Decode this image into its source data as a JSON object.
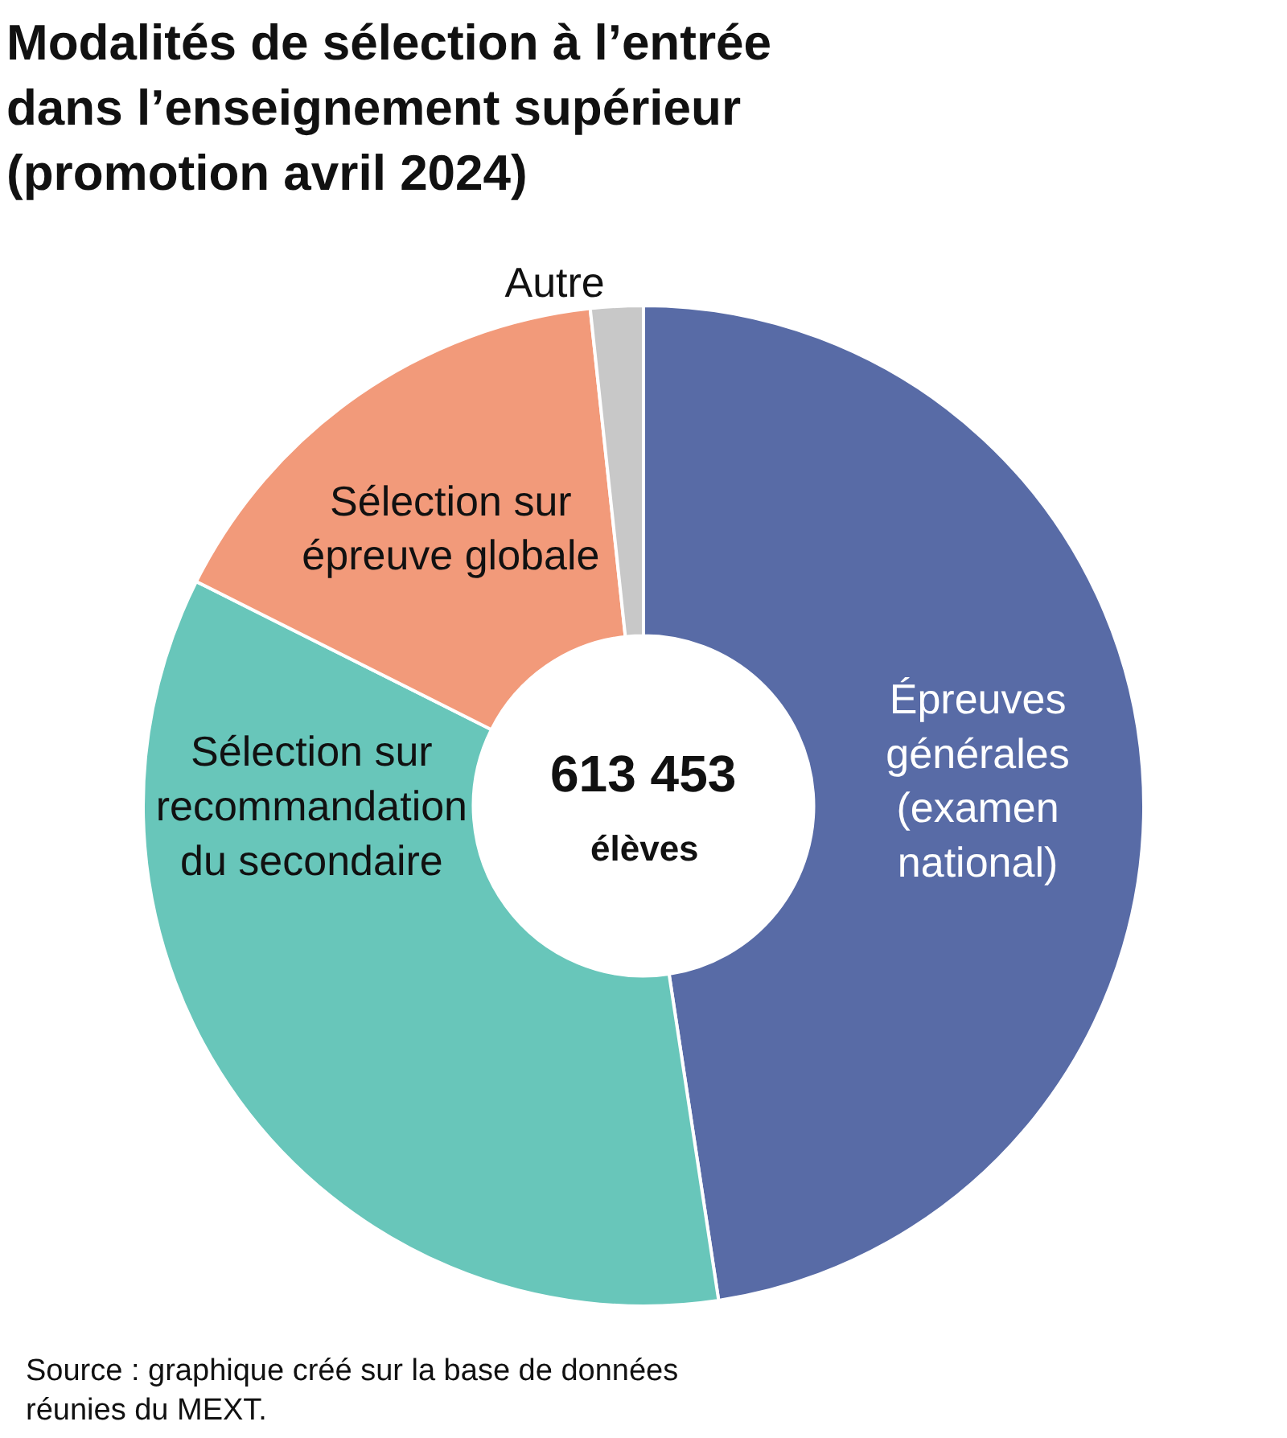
{
  "chart_data": {
    "type": "donut",
    "title": "Modalités de sélection à l’entrée dans l’enseignement supérieur (promotion avril 2024)",
    "categories": [
      "Épreuves générales (examen national)",
      "Sélection sur recommandation du secondaire",
      "Sélection sur épreuve globale",
      "Autre"
    ],
    "values": [
      47.6,
      34.8,
      15.9,
      1.7
    ],
    "colors": [
      "#586ba6",
      "#68c6ba",
      "#f29a7a",
      "#c8c8c8"
    ],
    "annotations": [
      "613 453",
      "élèves",
      "Source : graphique créé sur la base de données réunies du MEXT."
    ],
    "legend": false
  }
}
